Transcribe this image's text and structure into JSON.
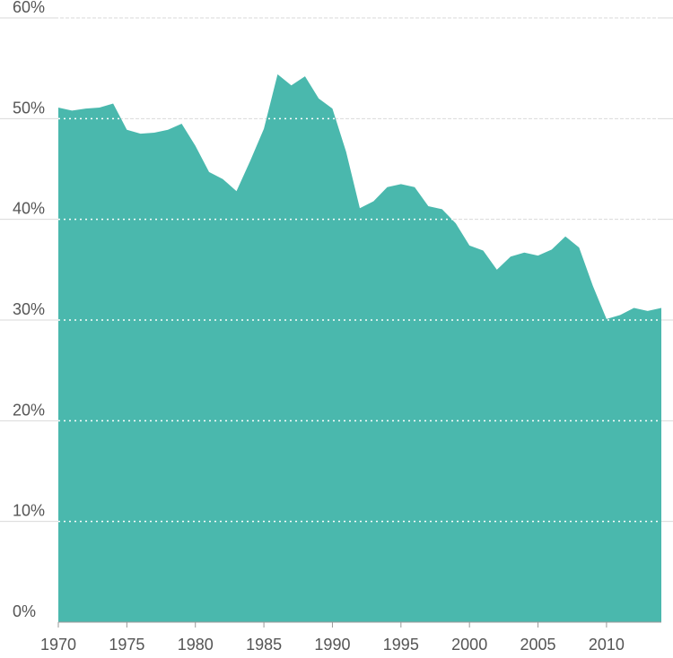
{
  "chart_data": {
    "type": "area",
    "title": "",
    "xlabel": "",
    "ylabel": "",
    "color": "#4ab8ad",
    "x": [
      1970,
      1971,
      1972,
      1973,
      1974,
      1975,
      1976,
      1977,
      1978,
      1979,
      1980,
      1981,
      1982,
      1983,
      1984,
      1985,
      1986,
      1987,
      1988,
      1989,
      1990,
      1991,
      1992,
      1993,
      1994,
      1995,
      1996,
      1997,
      1998,
      1999,
      2000,
      2001,
      2002,
      2003,
      2004,
      2005,
      2006,
      2007,
      2008,
      2009,
      2010,
      2011,
      2012,
      2013,
      2014
    ],
    "values": [
      51.1,
      50.8,
      51.0,
      51.1,
      51.5,
      48.9,
      48.5,
      48.6,
      48.9,
      49.5,
      47.3,
      44.7,
      44.0,
      42.8,
      45.8,
      49.0,
      54.4,
      53.3,
      54.2,
      52.0,
      51.0,
      46.7,
      41.1,
      41.8,
      43.2,
      43.5,
      43.2,
      41.3,
      41.0,
      39.6,
      37.4,
      36.9,
      35.0,
      36.3,
      36.7,
      36.4,
      37.0,
      38.3,
      37.2,
      33.4,
      30.1,
      30.5,
      31.2,
      30.9,
      31.2
    ],
    "x_ticks": [
      1970,
      1975,
      1980,
      1985,
      1990,
      1995,
      2000,
      2005,
      2010
    ],
    "x_tick_labels": [
      "1970",
      "1975",
      "1980",
      "1985",
      "1990",
      "1995",
      "2000",
      "2005",
      "2010"
    ],
    "y_ticks": [
      0,
      10,
      20,
      30,
      40,
      50,
      60
    ],
    "y_tick_labels": [
      "0%",
      "10%",
      "20%",
      "30%",
      "40%",
      "50%",
      "60%"
    ],
    "xlim": [
      1970,
      2014
    ],
    "ylim": [
      0,
      60
    ],
    "grid": true
  }
}
